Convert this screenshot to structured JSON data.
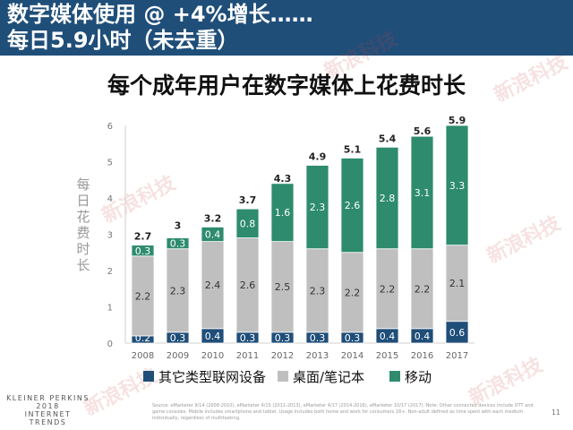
{
  "header": {
    "title_line1": "数字媒体使用 @ +4%增长……",
    "title_line2": "每日5.9小时（未去重）"
  },
  "chart_data": {
    "type": "bar",
    "stacked": true,
    "title": "每个成年用户在数字媒体上花费时长",
    "ylabel": "每日花费时长",
    "categories": [
      "2008",
      "2009",
      "2010",
      "2011",
      "2012",
      "2013",
      "2014",
      "2015",
      "2016",
      "2017"
    ],
    "series": [
      {
        "name": "其它类型联网设备",
        "color": "#1f4e79",
        "values": [
          0.2,
          0.3,
          0.4,
          0.3,
          0.3,
          0.3,
          0.3,
          0.4,
          0.4,
          0.6
        ]
      },
      {
        "name": "桌面/笔记本",
        "color": "#bfbfbf",
        "values": [
          2.2,
          2.3,
          2.4,
          2.6,
          2.5,
          2.3,
          2.2,
          2.2,
          2.2,
          2.1
        ]
      },
      {
        "name": "移动",
        "color": "#2e8b6e",
        "values": [
          0.3,
          0.3,
          0.4,
          0.8,
          1.6,
          2.3,
          2.6,
          2.8,
          3.1,
          3.3
        ]
      }
    ],
    "totals": [
      2.7,
      3.0,
      3.2,
      3.7,
      4.3,
      4.9,
      5.1,
      5.4,
      5.6,
      5.9
    ],
    "yticks": [
      0,
      1,
      2,
      3,
      4,
      5,
      6
    ],
    "ylim": [
      0,
      6
    ],
    "legend_position": "bottom"
  },
  "footer": {
    "source": "Source: eMarketer 9/14 (2008-2010), eMarketer 4/15 (2011-2013), eMarketer 4/17 (2014-2016), eMarketer 10/17 (2017). Note: Other connected devices include OTT and game consoles. Mobile includes smartphone and tablet. Usage includes both home and work for consumers 18+. Non-adult defined as time spent with each medium individually, regardless of multitasking.",
    "page_number": "11",
    "logo_line1": "KLEINER PERKINS",
    "logo_line2": "2018",
    "logo_line3": "INTERNET TRENDS"
  },
  "watermark": {
    "text": "新浪科技"
  }
}
